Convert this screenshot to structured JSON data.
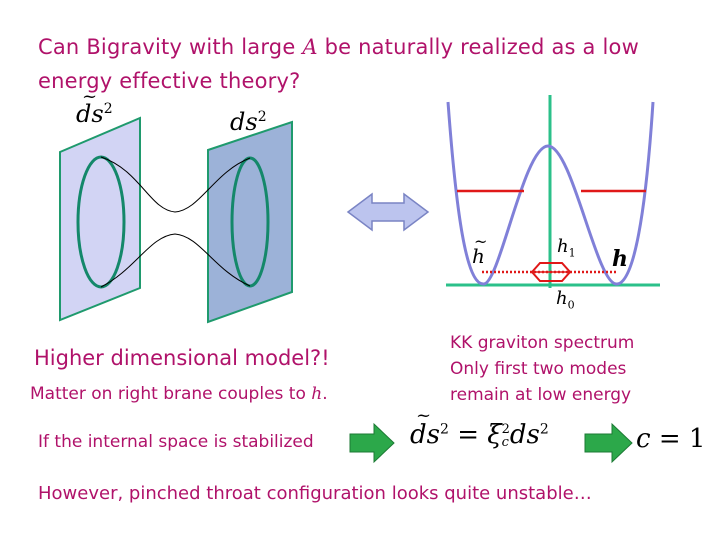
{
  "title": {
    "line1_pre": "Can Bigravity with large ",
    "line1_var": "A",
    "line1_post": " be naturally realized as a low",
    "line2": "energy effective theory?"
  },
  "left_figure": {
    "metric_left": "ds",
    "metric_left_exp": "2",
    "metric_right": "ds",
    "metric_right_exp": "2",
    "heading": "Higher dimensional model?!",
    "matter_pre": "Matter on right brane couples to ",
    "matter_var": "h",
    "matter_post": "."
  },
  "potential_figure": {
    "label_htilde": "h",
    "label_h1": "h",
    "label_h1_sub": "1",
    "label_h": "h",
    "label_h0": "h",
    "label_h0_sub": "0"
  },
  "spectrum": {
    "line1": "KK graviton spectrum",
    "line2": "Only first two modes",
    "line3": "remain at low energy"
  },
  "stabilization": {
    "text": "If the internal space is stabilized",
    "eq_lhs": "ds",
    "eq_lhs_exp": "2",
    "eq_xi": "ξ",
    "eq_xi_sub": "c",
    "eq_xi_exp": "2",
    "eq_rhs": "ds",
    "eq_rhs_exp": "2",
    "eq_equals": "=",
    "result_var": "c",
    "result_equals": "=",
    "result_value": "1"
  },
  "conclusion": "However, pinched throat configuration looks quite unstable…",
  "colors": {
    "text": "#b0126a",
    "left_brane": "#d2d4f4",
    "right_brane": "#9cb2d8",
    "brane_edge": "#1f9a6d",
    "ellipse": "#14886a",
    "arrow_fill": "#bcc4ee",
    "arrow_edge": "#7a84c4",
    "potential": "#8080d8",
    "axis": "#2bc08a",
    "level": "#e01818",
    "green_arrow": "#2ca84a"
  }
}
